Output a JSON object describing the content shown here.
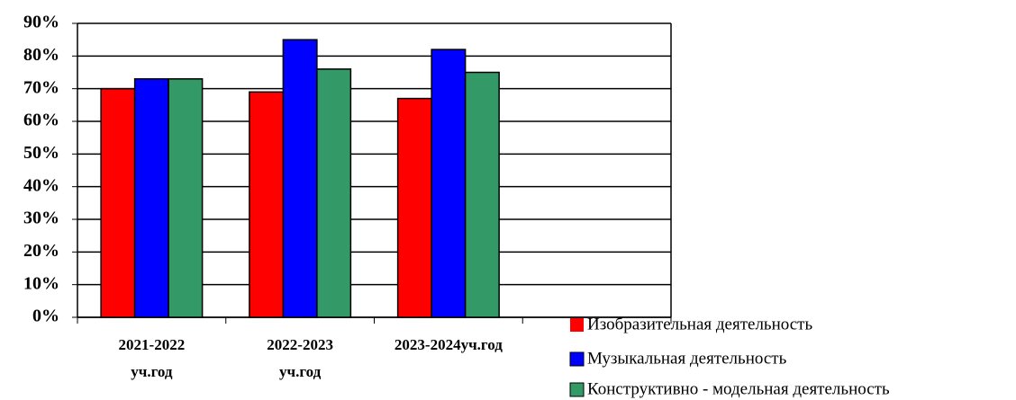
{
  "chart_data": {
    "type": "bar",
    "categories": [
      "2021-2022 уч.год",
      "2022-2023 уч.год",
      "2023-2024уч.год",
      null
    ],
    "series": [
      {
        "name": "Изобразительная деятельность",
        "color": "#ff0000",
        "values": [
          70,
          69,
          67,
          null
        ]
      },
      {
        "name": "Музыкальная деятельность",
        "color": "#0000ff",
        "values": [
          73,
          85,
          82,
          null
        ]
      },
      {
        "name": "Конструктивно - модельная деятельность",
        "color": "#339966",
        "values": [
          73,
          76,
          75,
          null
        ]
      }
    ],
    "ylim": [
      0,
      90
    ],
    "yticks": [
      {
        "value": 0,
        "label": "0%"
      },
      {
        "value": 10,
        "label": "10%"
      },
      {
        "value": 20,
        "label": "20%"
      },
      {
        "value": 30,
        "label": "30%"
      },
      {
        "value": 40,
        "label": "40%"
      },
      {
        "value": 50,
        "label": "50%"
      },
      {
        "value": 60,
        "label": "60%"
      },
      {
        "value": 70,
        "label": "70%"
      },
      {
        "value": 80,
        "label": "80%"
      },
      {
        "value": 90,
        "label": "90%"
      }
    ],
    "grid": true,
    "legend": "bottom-right"
  }
}
